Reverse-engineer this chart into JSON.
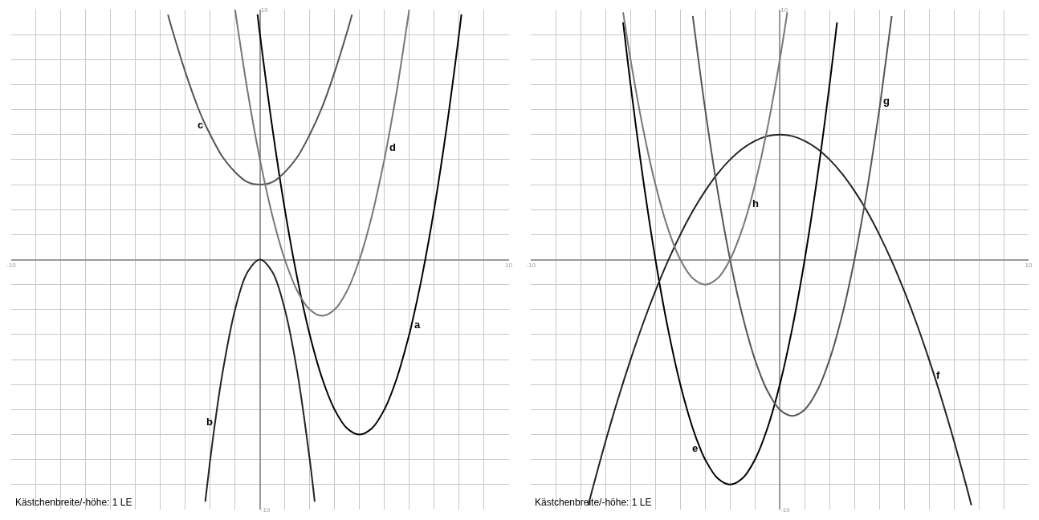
{
  "chart_data": [
    {
      "type": "line",
      "xlim": [
        -10,
        10
      ],
      "ylim": [
        -10,
        10
      ],
      "xticks": [
        -10,
        10
      ],
      "yticks": [
        -10,
        10
      ],
      "grid": true,
      "series": [
        {
          "color": "#000000",
          "x": [
            -0.1,
            0,
            0.5,
            1,
            1.5,
            2,
            2.5,
            3,
            3.5,
            4,
            4.5,
            5,
            5.5,
            6,
            6.1,
            6.5,
            7,
            7.5,
            8,
            8.1
          ],
          "values": [
            9.81,
            9,
            5.25,
            2,
            -0.75,
            -3,
            -4.75,
            -6,
            -6.75,
            -7,
            -6.75,
            -6,
            -4.75,
            -3,
            -2.59,
            -0.75,
            2,
            5.25,
            9,
            9.81
          ]
        },
        {
          "color": "#222222",
          "x": [
            -2.2,
            -2,
            -1.8,
            -1.5,
            -1,
            -0.5,
            0,
            0.5,
            1,
            1.5,
            2,
            2.2
          ],
          "values": [
            -9.68,
            -8,
            -6.48,
            -4.5,
            -2,
            -0.5,
            0,
            -0.5,
            -2,
            -4.5,
            -8,
            -9.68
          ]
        },
        {
          "color": "#555555",
          "x": [
            -3.7,
            -3.5,
            -3,
            -2.5,
            -2.2,
            -2,
            -1.5,
            -1,
            -0.5,
            0,
            0.5,
            1,
            1.5,
            2,
            2.5,
            3,
            3.5,
            3.7
          ],
          "values": [
            9.8,
            9.1,
            7.5,
            6.1,
            5.4,
            5,
            4.1,
            3.5,
            3.1,
            3,
            3.1,
            3.5,
            4.1,
            5,
            6.1,
            7.5,
            9.1,
            9.8
          ]
        },
        {
          "color": "#777777",
          "x": [
            -1,
            -0.5,
            0,
            0.5,
            1,
            1.5,
            2,
            2.5,
            3,
            3.5,
            4,
            4.5,
            5,
            5.1,
            5.5,
            6
          ],
          "values": [
            10,
            6.75,
            4,
            1.75,
            0,
            -1.25,
            -2,
            -2.25,
            -2,
            -1.25,
            0,
            1.75,
            4,
            4.51,
            6.75,
            10
          ]
        }
      ],
      "annotations": [
        {
          "text": "a",
          "x": 6.1,
          "y": -2.59
        },
        {
          "text": "b",
          "x": -1.8,
          "y": -6.48
        },
        {
          "text": "c",
          "x": -2.2,
          "y": 5.4
        },
        {
          "text": "d",
          "x": 5.1,
          "y": 4.51
        },
        "Kästchenbreite/-höhe: 1 LE"
      ]
    },
    {
      "type": "line",
      "xlim": [
        -10,
        10
      ],
      "ylim": [
        -10,
        10
      ],
      "xticks": [
        -10,
        10
      ],
      "yticks": [
        -10,
        10
      ],
      "grid": true,
      "series": [
        {
          "color": "#000000",
          "x": [
            -6.3,
            -6,
            -5.5,
            -5,
            -4.5,
            -4,
            -3.5,
            -3.2,
            -3,
            -2.5,
            -2,
            -1.5,
            -1,
            -0.5,
            0,
            0.5,
            1,
            1.5,
            2,
            2.3
          ],
          "values": [
            9.49,
            7,
            3.25,
            0,
            -2.75,
            -5,
            -6.75,
            -7.56,
            -8,
            -8.75,
            -9,
            -8.75,
            -8,
            -6.75,
            -5,
            -2.75,
            0,
            3.25,
            7,
            9.49
          ]
        },
        {
          "color": "#222222",
          "x": [
            -7.7,
            -7.5,
            -7,
            -6.5,
            -6,
            -5.5,
            -5,
            -4.5,
            -4,
            -3.5,
            -3,
            -2.5,
            -2,
            -1.5,
            -1,
            -0.5,
            0,
            0.5,
            1,
            1.5,
            2,
            2.5,
            3,
            3.5,
            4,
            4.5,
            5,
            5.5,
            6,
            6.2,
            6.5,
            7,
            7.5,
            7.7
          ],
          "values": [
            -9.82,
            -9.06,
            -7.25,
            -5.56,
            -4,
            -2.56,
            -1.25,
            -0.06,
            1,
            1.94,
            2.75,
            3.44,
            4,
            4.44,
            4.75,
            4.94,
            5,
            4.94,
            4.75,
            4.44,
            4,
            3.44,
            2.75,
            1.94,
            1,
            -0.06,
            -1.25,
            -2.56,
            -4,
            -4.61,
            -5.56,
            -7.25,
            -9.06,
            -9.82
          ]
        },
        {
          "color": "#555555",
          "x": [
            -3.5,
            -3,
            -2.5,
            -2,
            -1.5,
            -1,
            -0.5,
            0,
            0.5,
            1,
            1.5,
            2,
            2.5,
            3,
            3.5,
            4,
            4.05,
            4.5
          ],
          "values": [
            9.75,
            6,
            2.75,
            0,
            -2.25,
            -4,
            -5.25,
            -6,
            -6.25,
            -6,
            -5.25,
            -4,
            -2.25,
            0,
            2.75,
            6,
            6.35,
            9.75
          ]
        },
        {
          "color": "#777777",
          "x": [
            -6.3,
            -6,
            -5.5,
            -5,
            -4.5,
            -4,
            -3.5,
            -3,
            -2.5,
            -2,
            -1.5,
            -1.2,
            -1,
            -0.5,
            0,
            0.3
          ],
          "values": [
            9.89,
            8,
            5.25,
            3,
            1.25,
            0,
            -0.75,
            -1,
            -0.75,
            0,
            1.25,
            2.24,
            3,
            5.25,
            8,
            9.89
          ]
        }
      ],
      "annotations": [
        {
          "text": "e",
          "x": -3.2,
          "y": -7.56
        },
        {
          "text": "f",
          "x": 6.2,
          "y": -4.61
        },
        {
          "text": "g",
          "x": 4.05,
          "y": 6.35
        },
        {
          "text": "h",
          "x": -1.2,
          "y": 2.24
        },
        "Kästchenbreite/-höhe: 1 LE"
      ]
    }
  ]
}
